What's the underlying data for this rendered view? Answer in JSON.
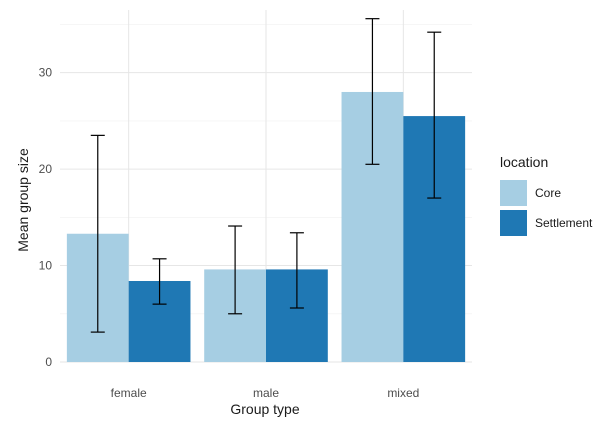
{
  "chart_data": {
    "type": "bar",
    "xlabel": "Group type",
    "ylabel": "Mean group size",
    "categories": [
      "female",
      "male",
      "mixed"
    ],
    "ylim": [
      0,
      36.5
    ],
    "yticks": [
      0,
      10,
      20,
      30
    ],
    "grid": true,
    "legend_title": "location",
    "legend_position": "right",
    "series": [
      {
        "name": "Core",
        "color": "#a6cee3",
        "values": [
          13.3,
          9.6,
          28.0
        ],
        "error_low": [
          3.1,
          5.0,
          20.5
        ],
        "error_high": [
          23.5,
          14.1,
          35.6
        ]
      },
      {
        "name": "Settlement",
        "color": "#1f78b4",
        "values": [
          8.4,
          9.6,
          25.5
        ],
        "error_low": [
          6.0,
          5.6,
          17.0
        ],
        "error_high": [
          10.7,
          13.4,
          34.2
        ]
      }
    ]
  }
}
